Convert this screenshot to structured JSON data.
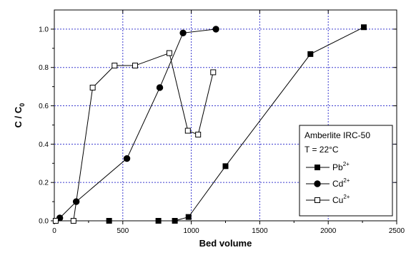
{
  "chart_data": {
    "type": "line",
    "xlabel": "Bed volume",
    "ylabel": "C / C",
    "ylabel_sub": "0",
    "xlim": [
      0,
      2500
    ],
    "ylim": [
      0,
      1.1
    ],
    "xticks": [
      0,
      500,
      1000,
      1500,
      2000,
      2500
    ],
    "yticks": [
      0.0,
      0.2,
      0.4,
      0.6,
      0.8,
      1.0
    ],
    "xtick_labels": [
      "0",
      "500",
      "1000",
      "1500",
      "2000",
      "2500"
    ],
    "ytick_labels": [
      "0.0",
      "0.2",
      "0.4",
      "0.6",
      "0.8",
      "1.0"
    ],
    "grid": true,
    "grid_color": "#3a3acf",
    "legend": {
      "position": "bottom-right",
      "title_lines": [
        "Amberlite IRC-50",
        "T = 22°C"
      ]
    },
    "series": [
      {
        "name": "Pb",
        "name_sup": "2+",
        "marker": "filled-square",
        "points": [
          [
            400,
            0.0
          ],
          [
            760,
            0.0
          ],
          [
            880,
            0.0
          ],
          [
            980,
            0.02
          ],
          [
            1250,
            0.285
          ],
          [
            1870,
            0.87
          ],
          [
            2260,
            1.01
          ]
        ]
      },
      {
        "name": "Cd",
        "name_sup": "2+",
        "marker": "filled-circle",
        "points": [
          [
            40,
            0.015
          ],
          [
            160,
            0.1
          ],
          [
            530,
            0.325
          ],
          [
            770,
            0.695
          ],
          [
            940,
            0.98
          ],
          [
            1180,
            1.0
          ]
        ]
      },
      {
        "name": "Cu",
        "name_sup": "2+",
        "marker": "open-square",
        "points": [
          [
            10,
            0.0
          ],
          [
            140,
            0.0
          ],
          [
            280,
            0.695
          ],
          [
            440,
            0.81
          ],
          [
            590,
            0.81
          ],
          [
            840,
            0.875
          ],
          [
            975,
            0.47
          ],
          [
            1050,
            0.45
          ],
          [
            1160,
            0.775
          ]
        ]
      }
    ]
  }
}
